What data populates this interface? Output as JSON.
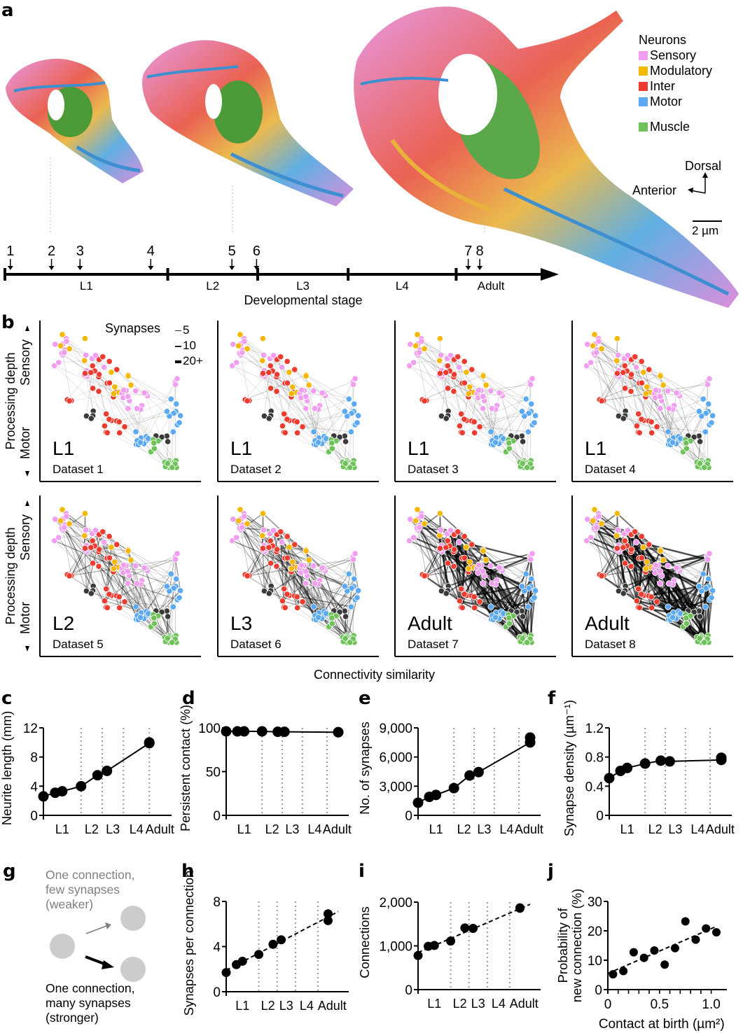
{
  "colors": {
    "sensory": "#f29ef0",
    "modulatory": "#f5b800",
    "inter": "#ee3b2f",
    "motor": "#5aa9f2",
    "muscle": "#6fc25a",
    "other": "#3a3a3a",
    "grid": "#9a9a9a",
    "g_node": "#cccccc",
    "g_weak": "#808080"
  },
  "panel_labels": [
    "a",
    "b",
    "c",
    "d",
    "e",
    "f",
    "g",
    "h",
    "i",
    "j"
  ],
  "panel_a": {
    "legend_title": "Neurons",
    "legend": [
      {
        "label": "Sensory",
        "color_key": "sensory"
      },
      {
        "label": "Modulatory",
        "color_key": "modulatory"
      },
      {
        "label": "Inter",
        "color_key": "inter"
      },
      {
        "label": "Motor",
        "color_key": "motor"
      },
      {
        "label": "Muscle",
        "color_key": "muscle"
      }
    ],
    "orientation": {
      "dorsal": "Dorsal",
      "anterior": "Anterior"
    },
    "scale_bar": "2 µm",
    "timeline": {
      "stages": [
        "L1",
        "L2",
        "L3",
        "L4",
        "Adult"
      ],
      "stage_boundaries": [
        0,
        0.297,
        0.461,
        0.626,
        0.823
      ],
      "dataset_markers": [
        {
          "label": "1",
          "pos": 0.01
        },
        {
          "label": "2",
          "pos": 0.085
        },
        {
          "label": "3",
          "pos": 0.137
        },
        {
          "label": "4",
          "pos": 0.266
        },
        {
          "label": "5",
          "pos": 0.414
        },
        {
          "label": "6",
          "pos": 0.459
        },
        {
          "label": "7",
          "pos": 0.845
        },
        {
          "label": "8",
          "pos": 0.866
        }
      ],
      "xlabel": "Developmental stage"
    },
    "render_stages": [
      "L1 brain render",
      "L3 brain render",
      "Adult brain render"
    ]
  },
  "panel_b": {
    "ylabel": "Processing depth",
    "sensory_label": "Sensory",
    "motor_label": "Motor",
    "xlabel": "Connectivity similarity",
    "synapse_legend_title": "Synapses",
    "synapse_legend": [
      "5",
      "10",
      "20+"
    ],
    "graphs": [
      {
        "stage": "L1",
        "dataset": "Dataset 1",
        "density": 0.25
      },
      {
        "stage": "L1",
        "dataset": "Dataset 2",
        "density": 0.3
      },
      {
        "stage": "L1",
        "dataset": "Dataset 3",
        "density": 0.35
      },
      {
        "stage": "L1",
        "dataset": "Dataset 4",
        "density": 0.45
      },
      {
        "stage": "L2",
        "dataset": "Dataset 5",
        "density": 0.65
      },
      {
        "stage": "L3",
        "dataset": "Dataset 6",
        "density": 0.72
      },
      {
        "stage": "Adult",
        "dataset": "Dataset 7",
        "density": 0.95
      },
      {
        "stage": "Adult",
        "dataset": "Dataset 8",
        "density": 1.0
      }
    ]
  },
  "chart_data": [
    {
      "id": "c",
      "type": "line",
      "ylabel": "Neurite length (mm)",
      "xlabel": "",
      "x_tick_labels": [
        "L1",
        "L2",
        "L3",
        "L4",
        "Adult"
      ],
      "yticks": [
        "0",
        "4",
        "8",
        "12"
      ],
      "ylim": [
        0,
        12
      ],
      "xlim_hours": [
        0,
        50
      ],
      "stage_gridlines_hours": [
        16,
        25,
        34,
        45
      ],
      "fit": "connected",
      "points": [
        {
          "dataset": 1,
          "x": 0,
          "y": 2.6
        },
        {
          "dataset": 2,
          "x": 5,
          "y": 3.1
        },
        {
          "dataset": 3,
          "x": 8,
          "y": 3.3
        },
        {
          "dataset": 4,
          "x": 16,
          "y": 4.0
        },
        {
          "dataset": 5,
          "x": 23,
          "y": 5.5
        },
        {
          "dataset": 6,
          "x": 27,
          "y": 6.1
        },
        {
          "dataset": 7,
          "x": 45,
          "y": 9.9
        },
        {
          "dataset": 8,
          "x": 45,
          "y": 10.0
        }
      ]
    },
    {
      "id": "d",
      "type": "line",
      "ylabel": "Persistent contact (%)",
      "xlabel": "",
      "x_tick_labels": [
        "L1",
        "L2",
        "L3",
        "L4",
        "Adult"
      ],
      "yticks": [
        "0",
        "50",
        "100"
      ],
      "ylim": [
        0,
        100
      ],
      "xlim_hours": [
        0,
        50
      ],
      "stage_gridlines_hours": [
        16,
        25,
        34,
        45
      ],
      "fit": "connected",
      "points": [
        {
          "dataset": 1,
          "x": 0,
          "y": 96
        },
        {
          "dataset": 2,
          "x": 5,
          "y": 96
        },
        {
          "dataset": 3,
          "x": 8,
          "y": 96
        },
        {
          "dataset": 4,
          "x": 16,
          "y": 96
        },
        {
          "dataset": 5,
          "x": 23,
          "y": 95.5
        },
        {
          "dataset": 6,
          "x": 26,
          "y": 95.5
        },
        {
          "dataset": 7,
          "x": 50,
          "y": 95
        },
        {
          "dataset": 8,
          "x": 50,
          "y": 95
        }
      ]
    },
    {
      "id": "e",
      "type": "line",
      "ylabel": "No. of synapses",
      "xlabel": "",
      "x_tick_labels": [
        "L1",
        "L2",
        "L3",
        "L4",
        "Adult"
      ],
      "yticks": [
        "0",
        "3,000",
        "6,000",
        "9,000"
      ],
      "ylim": [
        0,
        9000
      ],
      "xlim_hours": [
        0,
        50
      ],
      "stage_gridlines_hours": [
        16,
        25,
        34,
        45
      ],
      "fit": "connected",
      "points": [
        {
          "dataset": 1,
          "x": 0,
          "y": 1300
        },
        {
          "dataset": 2,
          "x": 5,
          "y": 1900
        },
        {
          "dataset": 3,
          "x": 8,
          "y": 2100
        },
        {
          "dataset": 4,
          "x": 16,
          "y": 2800
        },
        {
          "dataset": 5,
          "x": 23,
          "y": 4100
        },
        {
          "dataset": 6,
          "x": 27,
          "y": 4450
        },
        {
          "dataset": 7,
          "x": 50,
          "y": 7500
        },
        {
          "dataset": 8,
          "x": 50,
          "y": 8000
        }
      ]
    },
    {
      "id": "f",
      "type": "line",
      "ylabel": "Synapse density (µm⁻¹)",
      "xlabel": "",
      "x_tick_labels": [
        "L1",
        "L2",
        "L3",
        "L4",
        "Adult"
      ],
      "yticks": [
        "0",
        "0.4",
        "0.8",
        "1.2"
      ],
      "ylim": [
        0,
        1.2
      ],
      "xlim_hours": [
        0,
        50
      ],
      "stage_gridlines_hours": [
        16,
        25,
        34,
        45
      ],
      "fit": "connected",
      "points": [
        {
          "dataset": 1,
          "x": 0,
          "y": 0.51
        },
        {
          "dataset": 2,
          "x": 5,
          "y": 0.61
        },
        {
          "dataset": 3,
          "x": 8,
          "y": 0.65
        },
        {
          "dataset": 4,
          "x": 16,
          "y": 0.71
        },
        {
          "dataset": 5,
          "x": 23,
          "y": 0.75
        },
        {
          "dataset": 6,
          "x": 27,
          "y": 0.74
        },
        {
          "dataset": 7,
          "x": 50,
          "y": 0.76
        },
        {
          "dataset": 8,
          "x": 50,
          "y": 0.79
        }
      ]
    },
    {
      "id": "h",
      "type": "scatter",
      "ylabel": "Synapses per connection",
      "xlabel": "",
      "x_tick_labels": [
        "L1",
        "L2",
        "L3",
        "L4",
        "Adult"
      ],
      "yticks": [
        "0",
        "4",
        "8"
      ],
      "ylim": [
        0,
        8
      ],
      "xlim_hours": [
        0,
        55
      ],
      "stage_gridlines_hours": [
        16,
        25,
        34,
        45
      ],
      "fit": "linear-dashed",
      "fit_line": [
        {
          "x": 0,
          "y": 1.9
        },
        {
          "x": 55,
          "y": 7.1
        }
      ],
      "points": [
        {
          "dataset": 1,
          "x": 0,
          "y": 1.7
        },
        {
          "dataset": 2,
          "x": 5,
          "y": 2.4
        },
        {
          "dataset": 3,
          "x": 8,
          "y": 2.7
        },
        {
          "dataset": 4,
          "x": 16,
          "y": 3.3
        },
        {
          "dataset": 5,
          "x": 23,
          "y": 4.2
        },
        {
          "dataset": 6,
          "x": 27,
          "y": 4.6
        },
        {
          "dataset": 7,
          "x": 50,
          "y": 6.3
        },
        {
          "dataset": 8,
          "x": 50,
          "y": 6.9
        }
      ]
    },
    {
      "id": "i",
      "type": "scatter",
      "ylabel": "Connections",
      "xlabel": "",
      "x_tick_labels": [
        "L1",
        "L2",
        "L3",
        "L4",
        "Adult"
      ],
      "yticks": [
        "0",
        "1,000",
        "2,000"
      ],
      "ylim": [
        0,
        2000
      ],
      "xlim_hours": [
        0,
        55
      ],
      "stage_gridlines_hours": [
        16,
        25,
        34,
        45
      ],
      "fit": "linear-dashed",
      "fit_line": [
        {
          "x": 0,
          "y": 850
        },
        {
          "x": 55,
          "y": 1950
        }
      ],
      "points": [
        {
          "dataset": 1,
          "x": 0,
          "y": 780
        },
        {
          "dataset": 2,
          "x": 5,
          "y": 990
        },
        {
          "dataset": 3,
          "x": 8,
          "y": 1010
        },
        {
          "dataset": 4,
          "x": 16,
          "y": 1110
        },
        {
          "dataset": 5,
          "x": 23,
          "y": 1410
        },
        {
          "dataset": 6,
          "x": 27,
          "y": 1400
        },
        {
          "dataset": 7,
          "x": 50,
          "y": 1860
        },
        {
          "dataset": 8,
          "x": 50,
          "y": 1870
        }
      ]
    },
    {
      "id": "j",
      "type": "scatter",
      "ylabel": "Probability of new connection (%)",
      "ylabel_lines": [
        "Probability of",
        "new connection (%)"
      ],
      "xlabel": "Contact at birth (µm²)",
      "xticks": [
        "0",
        "0.5",
        "1.0"
      ],
      "ylim": [
        0,
        30
      ],
      "xlim": [
        0,
        1.05
      ],
      "yticks": [
        "0",
        "10",
        "20",
        "30"
      ],
      "fit": "linear-dashed",
      "fit_line": [
        {
          "x": 0.0,
          "y": 5.5
        },
        {
          "x": 1.05,
          "y": 21.5
        }
      ],
      "points": [
        {
          "x": 0.05,
          "y": 5.2
        },
        {
          "x": 0.15,
          "y": 6.3
        },
        {
          "x": 0.25,
          "y": 12.7
        },
        {
          "x": 0.35,
          "y": 10.8
        },
        {
          "x": 0.45,
          "y": 13.3
        },
        {
          "x": 0.55,
          "y": 8.5
        },
        {
          "x": 0.65,
          "y": 14.1
        },
        {
          "x": 0.75,
          "y": 23.2
        },
        {
          "x": 0.85,
          "y": 17.0
        },
        {
          "x": 0.95,
          "y": 20.8
        },
        {
          "x": 1.05,
          "y": 19.5
        }
      ]
    }
  ],
  "panel_g": {
    "weak_text": [
      "One connection,",
      "few synapses",
      "(weaker)"
    ],
    "strong_text": [
      "One connection,",
      "many synapses",
      "(stronger)"
    ]
  }
}
